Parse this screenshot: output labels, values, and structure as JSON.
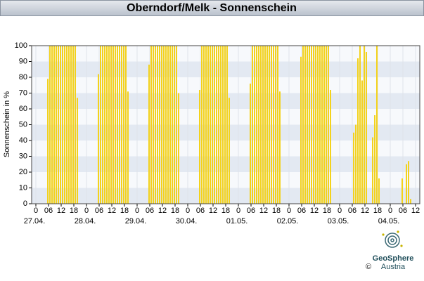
{
  "chart_data": {
    "type": "bar",
    "title": "Oberndorf/Melk - Sonnenschein",
    "y_label": "Sonnenschein in %",
    "color": "#f3d21c",
    "grid": true,
    "x": [
      5,
      6,
      7,
      8,
      9,
      10,
      11,
      12,
      13,
      14,
      15,
      16,
      17,
      18,
      19,
      29,
      30,
      31,
      32,
      33,
      34,
      35,
      36,
      37,
      38,
      39,
      40,
      41,
      42,
      43,
      53,
      54,
      55,
      56,
      57,
      58,
      59,
      60,
      61,
      62,
      63,
      64,
      65,
      66,
      67,
      77,
      78,
      79,
      80,
      81,
      82,
      83,
      84,
      85,
      86,
      87,
      88,
      89,
      90,
      91,
      101,
      102,
      103,
      104,
      105,
      106,
      107,
      108,
      109,
      110,
      111,
      112,
      113,
      114,
      115,
      125,
      126,
      127,
      128,
      129,
      130,
      131,
      132,
      133,
      134,
      135,
      136,
      137,
      138,
      139,
      150,
      151,
      152,
      153,
      154,
      155,
      156,
      159,
      160,
      161,
      162,
      173,
      175,
      176,
      177
    ],
    "values": [
      79,
      100,
      100,
      100,
      100,
      100,
      100,
      100,
      100,
      100,
      100,
      100,
      100,
      100,
      67,
      82,
      100,
      100,
      100,
      100,
      100,
      100,
      100,
      100,
      100,
      100,
      100,
      100,
      100,
      71,
      88,
      100,
      100,
      100,
      100,
      100,
      100,
      100,
      100,
      100,
      100,
      100,
      100,
      100,
      70,
      72,
      100,
      100,
      100,
      100,
      100,
      100,
      100,
      100,
      100,
      100,
      100,
      100,
      100,
      67,
      76,
      100,
      100,
      100,
      100,
      100,
      100,
      100,
      100,
      100,
      100,
      100,
      100,
      100,
      71,
      93,
      100,
      100,
      100,
      100,
      100,
      100,
      100,
      100,
      100,
      100,
      100,
      100,
      100,
      72,
      45,
      50,
      92,
      100,
      78,
      100,
      96,
      42,
      56,
      100,
      16,
      16,
      25,
      27,
      3
    ],
    "xlim": [
      -2,
      182
    ],
    "ylim": [
      0,
      100
    ],
    "yticks": [
      0,
      10,
      20,
      30,
      40,
      50,
      60,
      70,
      80,
      90,
      100
    ],
    "xticks": [
      {
        "value": 0,
        "label": "0"
      },
      {
        "value": 6,
        "label": "06"
      },
      {
        "value": 12,
        "label": "12"
      },
      {
        "value": 18,
        "label": "18"
      },
      {
        "value": 24,
        "label": "0"
      },
      {
        "value": 30,
        "label": "06"
      },
      {
        "value": 36,
        "label": "12"
      },
      {
        "value": 42,
        "label": "18"
      },
      {
        "value": 48,
        "label": "0"
      },
      {
        "value": 54,
        "label": "06"
      },
      {
        "value": 60,
        "label": "12"
      },
      {
        "value": 66,
        "label": "18"
      },
      {
        "value": 72,
        "label": "0"
      },
      {
        "value": 78,
        "label": "06"
      },
      {
        "value": 84,
        "label": "12"
      },
      {
        "value": 90,
        "label": "18"
      },
      {
        "value": 96,
        "label": "0"
      },
      {
        "value": 102,
        "label": "06"
      },
      {
        "value": 108,
        "label": "12"
      },
      {
        "value": 114,
        "label": "18"
      },
      {
        "value": 120,
        "label": "0"
      },
      {
        "value": 126,
        "label": "06"
      },
      {
        "value": 132,
        "label": "12"
      },
      {
        "value": 138,
        "label": "18"
      },
      {
        "value": 144,
        "label": "0"
      },
      {
        "value": 150,
        "label": "06"
      },
      {
        "value": 156,
        "label": "12"
      },
      {
        "value": 162,
        "label": "18"
      },
      {
        "value": 168,
        "label": "0"
      },
      {
        "value": 174,
        "label": "06"
      },
      {
        "value": 180,
        "label": "12"
      }
    ],
    "date_labels": [
      {
        "value": 0,
        "label": "27.04."
      },
      {
        "value": 24,
        "label": "28.04."
      },
      {
        "value": 48,
        "label": "29.04."
      },
      {
        "value": 72,
        "label": "30.04."
      },
      {
        "value": 96,
        "label": "01.05."
      },
      {
        "value": 120,
        "label": "02.05."
      },
      {
        "value": 144,
        "label": "03.05."
      },
      {
        "value": 168,
        "label": "04.05."
      }
    ]
  },
  "logo": {
    "copyright": "©",
    "name": "GeoSphere",
    "country": "Austria"
  }
}
